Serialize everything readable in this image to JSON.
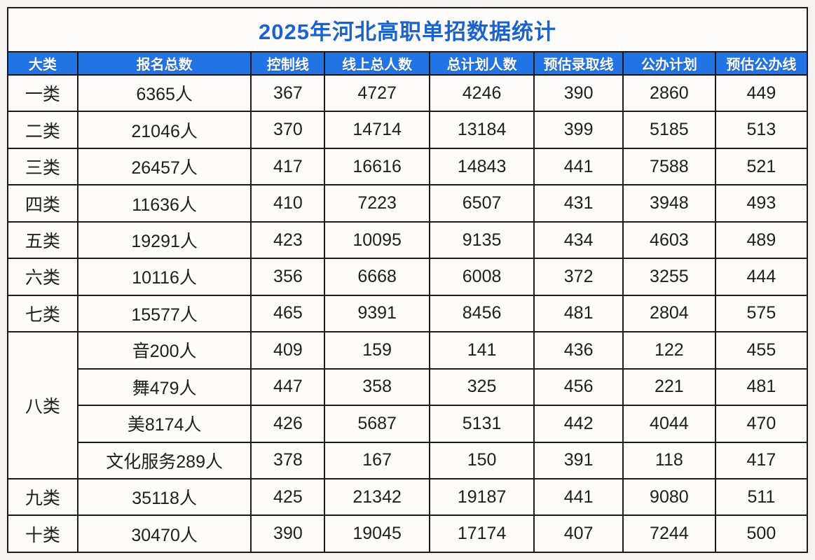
{
  "title": "2025年河北高职单招数据统计",
  "colors": {
    "header_bg": "#2273e3",
    "header_text": "#ffffff",
    "title_text": "#1b63cc",
    "grid_line": "#1c1c1c",
    "cell_bg": "#fdfcfb"
  },
  "chart_data": {
    "type": "table",
    "title": "2025年河北高职单招数据统计",
    "headers": [
      "大类",
      "报名总数",
      "控制线",
      "线上总人数",
      "总计划人数",
      "预估录取线",
      "公办计划",
      "预估公办线"
    ],
    "rows": [
      {
        "category": "一类",
        "span": 1,
        "cells": [
          "6365人",
          "367",
          "4727",
          "4246",
          "390",
          "2860",
          "449"
        ]
      },
      {
        "category": "二类",
        "span": 1,
        "cells": [
          "21046人",
          "370",
          "14714",
          "13184",
          "399",
          "5185",
          "513"
        ]
      },
      {
        "category": "三类",
        "span": 1,
        "cells": [
          "26457人",
          "417",
          "16616",
          "14843",
          "441",
          "7588",
          "521"
        ]
      },
      {
        "category": "四类",
        "span": 1,
        "cells": [
          "11636人",
          "410",
          "7223",
          "6507",
          "431",
          "3948",
          "493"
        ]
      },
      {
        "category": "五类",
        "span": 1,
        "cells": [
          "19291人",
          "423",
          "10095",
          "9135",
          "434",
          "4603",
          "489"
        ]
      },
      {
        "category": "六类",
        "span": 1,
        "cells": [
          "10116人",
          "356",
          "6668",
          "6008",
          "372",
          "3255",
          "444"
        ]
      },
      {
        "category": "七类",
        "span": 1,
        "cells": [
          "15577人",
          "465",
          "9391",
          "8456",
          "481",
          "2804",
          "575"
        ]
      },
      {
        "category": "八类",
        "span": 4,
        "cells": [
          "音200人",
          "409",
          "159",
          "141",
          "436",
          "122",
          "455"
        ]
      },
      {
        "category": null,
        "span": 1,
        "cells": [
          "舞479人",
          "447",
          "358",
          "325",
          "456",
          "221",
          "481"
        ]
      },
      {
        "category": null,
        "span": 1,
        "cells": [
          "美8174人",
          "426",
          "5687",
          "5131",
          "442",
          "4044",
          "470"
        ]
      },
      {
        "category": null,
        "span": 1,
        "cells": [
          "文化服务289人",
          "378",
          "167",
          "150",
          "391",
          "118",
          "417"
        ]
      },
      {
        "category": "九类",
        "span": 1,
        "cells": [
          "35118人",
          "425",
          "21342",
          "19187",
          "441",
          "9080",
          "511"
        ]
      },
      {
        "category": "十类",
        "span": 1,
        "cells": [
          "30470人",
          "390",
          "19045",
          "17174",
          "407",
          "7244",
          "500"
        ]
      }
    ]
  }
}
